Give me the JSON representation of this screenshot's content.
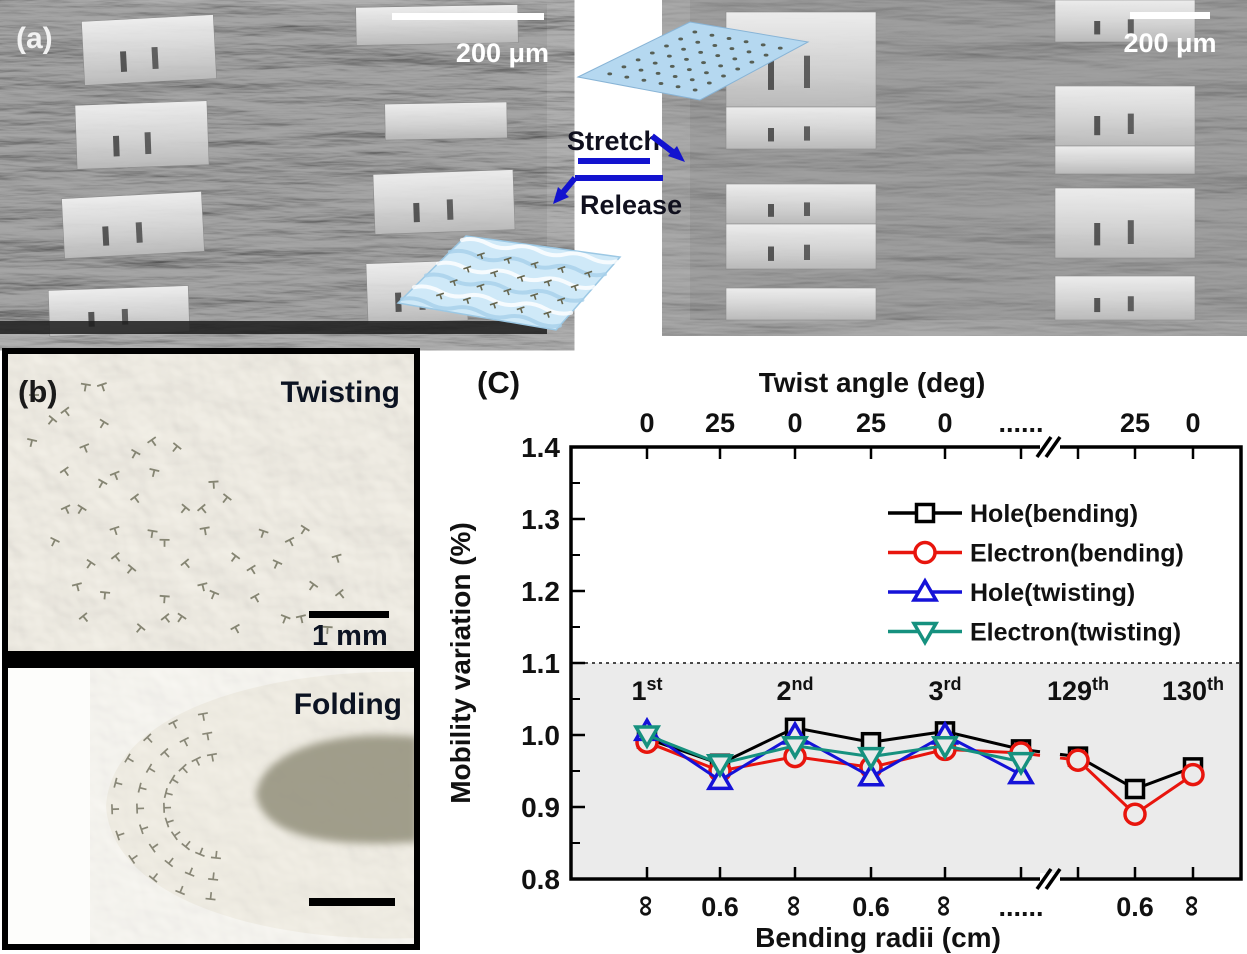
{
  "panel_a": {
    "label": "(a)",
    "left_image": {
      "scalebar_text": "200 μm"
    },
    "right_image": {
      "scalebar_text": "200 μm"
    },
    "arrows": {
      "stretch": "Stretch",
      "release": "Release"
    }
  },
  "panel_b": {
    "label": "(b)",
    "photos": [
      {
        "title": "Twisting",
        "scalebar_text": "1 mm"
      },
      {
        "title": "Folding",
        "scalebar_text": ""
      }
    ]
  },
  "panel_c": {
    "label": "(C)"
  },
  "chart_data": {
    "type": "line",
    "top_axis_title": "Twist angle (deg)",
    "bottom_axis_title": "Bending radii (cm)",
    "ylabel": "Mobility variation (%)",
    "ylim": [
      0.8,
      1.4
    ],
    "yticks": [
      "0.8",
      "0.9",
      "1.0",
      "1.1",
      "1.2",
      "1.3",
      "1.4"
    ],
    "x_positions": 9,
    "axis_break_after_index": 5,
    "top_axis_labels": [
      "0",
      "25",
      "0",
      "25",
      "0",
      "......",
      "",
      "25",
      "0"
    ],
    "bottom_axis_labels": [
      "∞",
      "0.6",
      "∞",
      "0.6",
      "∞",
      "......",
      "",
      "0.6",
      "∞"
    ],
    "infinity_symbol_rotated": true,
    "reference_line_y": 1.1,
    "shaded_band": [
      0.8,
      1.1
    ],
    "grid": false,
    "legend_position": "upper right",
    "cycle_labels": [
      {
        "base": "1",
        "sup": "st",
        "index": 0
      },
      {
        "base": "2",
        "sup": "nd",
        "index": 2
      },
      {
        "base": "3",
        "sup": "rd",
        "index": 4
      },
      {
        "base": "129",
        "sup": "th",
        "index": 6
      },
      {
        "base": "130",
        "sup": "th",
        "index": 8
      }
    ],
    "series": [
      {
        "name": "Hole(bending)",
        "color": "#000000",
        "marker": "square",
        "values": [
          0.995,
          0.96,
          1.01,
          0.99,
          1.005,
          0.98,
          0.97,
          0.925,
          0.955
        ]
      },
      {
        "name": "Electron(bending)",
        "color": "#e8150d",
        "marker": "circle",
        "values": [
          0.99,
          0.95,
          0.97,
          0.955,
          0.98,
          0.975,
          0.965,
          0.89,
          0.945
        ]
      },
      {
        "name": "Hole(twisting)",
        "color": "#1512d8",
        "marker": "triangle-up",
        "values": [
          1.005,
          0.937,
          1.0,
          0.942,
          1.0,
          0.945,
          null,
          null,
          null
        ]
      },
      {
        "name": "Electron(twisting)",
        "color": "#16917f",
        "marker": "triangle-down",
        "values": [
          1.0,
          0.96,
          0.985,
          0.97,
          0.985,
          0.963,
          null,
          null,
          null
        ]
      }
    ]
  },
  "colors": {
    "arrow_blue": "#1313cf",
    "schematic_blue": "#b5d8f0",
    "wavy_blue": "#cfe9f8",
    "chart_band": "#ebebeb",
    "label_dark": "#0c1322"
  }
}
